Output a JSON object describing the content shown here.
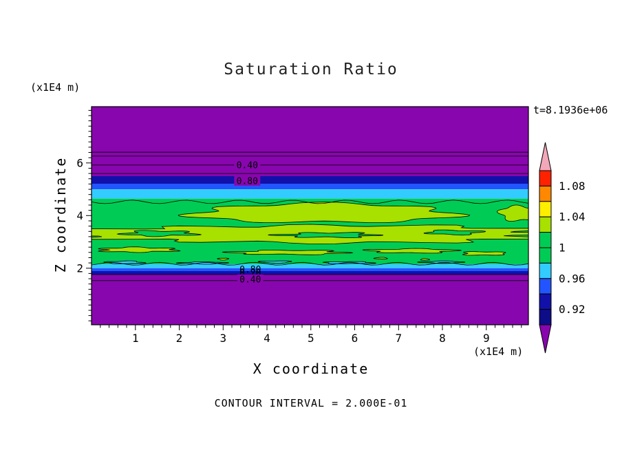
{
  "chart_data": {
    "type": "contour",
    "title": "Saturation Ratio",
    "xlabel": "X coordinate",
    "ylabel": "Z coordinate",
    "x_axis_unit": "(x1E4 m)",
    "y_axis_unit": "(x1E4 m)",
    "time_annotation": "t=8.1936e+06",
    "contour_interval_note": "CONTOUR INTERVAL = 2.000E-01",
    "contour_interval_value": 0.2,
    "xlim": [
      0,
      9.96
    ],
    "zlim": [
      -0.15,
      8.14
    ],
    "x_ticks": [
      1,
      2,
      3,
      4,
      5,
      6,
      7,
      8,
      9
    ],
    "y_ticks": [
      2,
      4,
      6
    ],
    "minor_tick_step": 0.2,
    "colors": {
      "purple": "#8806AE",
      "navy": "#1111AA",
      "navy2": "#0D0D88",
      "blue": "#2255FF",
      "cyan": "#33CCFF",
      "green": "#00CC55",
      "chartreuse": "#A8E000",
      "yellow": "#FFEE00",
      "orange": "#FF8800",
      "red": "#FF2200",
      "pink": "#F2A8B8"
    },
    "bands": [
      {
        "z0": 8.14,
        "z1": 5.5,
        "c": "purple"
      },
      {
        "z0": 5.5,
        "z1": 5.21,
        "c": "navy"
      },
      {
        "z0": 5.21,
        "z1": 5.0,
        "c": "blue"
      },
      {
        "z0": 5.0,
        "z1": 4.64,
        "c": "cyan"
      },
      {
        "z0": 4.64,
        "z1": 2.15,
        "c": "green"
      },
      {
        "z0": 2.15,
        "z1": 2.0,
        "c": "cyan"
      },
      {
        "z0": 2.0,
        "z1": 1.89,
        "c": "blue"
      },
      {
        "z0": 1.89,
        "z1": 1.76,
        "c": "navy"
      },
      {
        "z0": 1.76,
        "z1": -0.15,
        "c": "purple"
      }
    ],
    "blobs": [
      {
        "x": 5.3,
        "z": 4.09,
        "rx": 2.95,
        "rz": 0.36,
        "c": "chartreuse",
        "w": 7,
        "a": 0.12
      },
      {
        "x": 5.0,
        "z": 3.3,
        "rx": 5.6,
        "rz": 0.33,
        "c": "chartreuse",
        "w": 12,
        "a": 0.14
      },
      {
        "x": 9.75,
        "z": 4.09,
        "rx": 0.45,
        "rz": 0.28,
        "c": "chartreuse",
        "w": 5,
        "a": 0.15
      },
      {
        "x": 1.55,
        "z": 3.32,
        "rx": 0.78,
        "rz": 0.1,
        "c": "green",
        "w": 5,
        "a": 0.25
      },
      {
        "x": 5.4,
        "z": 3.26,
        "rx": 1.05,
        "rz": 0.09,
        "c": "green",
        "w": 6,
        "a": 0.25
      },
      {
        "x": 8.25,
        "z": 3.36,
        "rx": 0.6,
        "rz": 0.085,
        "c": "green",
        "w": 4,
        "a": 0.25
      },
      {
        "x": 1.05,
        "z": 2.7,
        "rx": 0.85,
        "rz": 0.09,
        "c": "chartreuse",
        "w": 6,
        "a": 0.2
      },
      {
        "x": 4.5,
        "z": 2.6,
        "rx": 1.25,
        "rz": 0.08,
        "c": "chartreuse",
        "w": 6,
        "a": 0.2
      },
      {
        "x": 7.3,
        "z": 2.66,
        "rx": 0.95,
        "rz": 0.08,
        "c": "chartreuse",
        "w": 5,
        "a": 0.2
      },
      {
        "x": 8.95,
        "z": 2.56,
        "rx": 0.5,
        "rz": 0.07,
        "c": "chartreuse",
        "w": 4,
        "a": 0.2
      },
      {
        "x": 0.75,
        "z": 2.22,
        "rx": 0.42,
        "rz": 0.05,
        "c": "cyan",
        "w": 4,
        "a": 0.2
      },
      {
        "x": 2.55,
        "z": 2.2,
        "rx": 0.5,
        "rz": 0.04,
        "c": "cyan",
        "w": 4,
        "a": 0.2
      },
      {
        "x": 4.2,
        "z": 2.24,
        "rx": 0.35,
        "rz": 0.04,
        "c": "cyan",
        "w": 3,
        "a": 0.2
      },
      {
        "x": 5.85,
        "z": 2.21,
        "rx": 0.55,
        "rz": 0.04,
        "c": "cyan",
        "w": 4,
        "a": 0.2
      },
      {
        "x": 8.0,
        "z": 2.23,
        "rx": 0.45,
        "rz": 0.04,
        "c": "cyan",
        "w": 4,
        "a": 0.2
      },
      {
        "x": 3.0,
        "z": 2.35,
        "rx": 0.12,
        "rz": 0.035,
        "c": "chartreuse",
        "w": 3,
        "a": 0.15
      },
      {
        "x": 6.6,
        "z": 2.38,
        "rx": 0.15,
        "rz": 0.03,
        "c": "chartreuse",
        "w": 3,
        "a": 0.15
      },
      {
        "x": 7.6,
        "z": 2.33,
        "rx": 0.1,
        "rz": 0.03,
        "c": "chartreuse",
        "w": 3,
        "a": 0.15
      }
    ],
    "wavy_lines": [
      {
        "z": 4.52,
        "a": 2.5,
        "f": 0.8
      },
      {
        "z": 2.17,
        "a": 2.0,
        "f": 0.9
      }
    ],
    "contour_lines": [
      6.41,
      6.26,
      5.92,
      5.6,
      1.76,
      1.53
    ],
    "contour_labels": [
      {
        "text": "0.40",
        "x": 3.55,
        "z": 5.92,
        "bg": "purple"
      },
      {
        "text": "0.80",
        "x": 3.55,
        "z": 5.32,
        "bg": "purple"
      },
      {
        "text": "0.80",
        "x": 3.62,
        "z": 1.95
      },
      {
        "text": "0.20",
        "x": 3.62,
        "z": 1.83
      },
      {
        "text": "0.40",
        "x": 3.62,
        "z": 1.58,
        "bg": "purple"
      }
    ],
    "colorbar": {
      "top_cap_color": "pink",
      "bottom_cap_color": "purple",
      "segments": [
        "red",
        "orange",
        "yellow",
        "chartreuse",
        "green",
        "green",
        "cyan",
        "blue",
        "navy",
        "navy2"
      ],
      "labels": [
        {
          "text": "1.08",
          "boundary": 1
        },
        {
          "text": "1.04",
          "boundary": 3
        },
        {
          "text": "1",
          "boundary": 5
        },
        {
          "text": "0.96",
          "boundary": 7
        },
        {
          "text": "0.92",
          "boundary": 9
        }
      ]
    }
  }
}
